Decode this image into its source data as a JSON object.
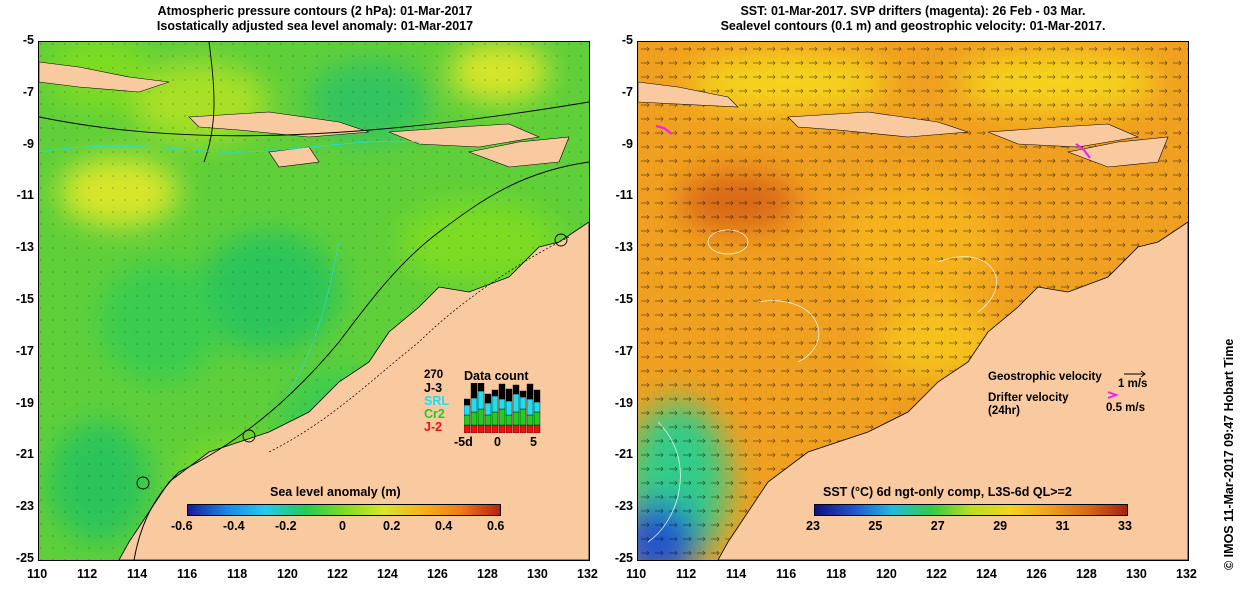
{
  "left_map": {
    "title_line1": "Atmospheric pressure contours (2 hPa): 01-Mar-2017",
    "title_line2": "Isostatically adjusted sea level anomaly: 01-Mar-2017",
    "colorbar_title": "Sea level anomaly (m)",
    "colorbar_ticks": [
      "-0.6",
      "-0.4",
      "-0.2",
      "0",
      "0.2",
      "0.4",
      "0.6"
    ],
    "data_count": {
      "title": "Data count",
      "max_label": "270",
      "missions": [
        {
          "name": "J-3",
          "color": "#000000"
        },
        {
          "name": "SRL",
          "color": "#22ddee"
        },
        {
          "name": "Cr2",
          "color": "#22cc22"
        },
        {
          "name": "J-2",
          "color": "#ee1111"
        }
      ],
      "axis_labels": [
        "-5d",
        "0",
        "5"
      ]
    }
  },
  "right_map": {
    "title_line1": "SST: 01-Mar-2017. SVP drifters (magenta): 26 Feb - 03 Mar.",
    "title_line2": "Sealevel contours (0.1 m) and geostrophic velocity: 01-Mar-2017.",
    "colorbar_title": "SST (°C) 6d ngt-only comp, L3S-6d QL>=2",
    "colorbar_ticks": [
      "23",
      "25",
      "27",
      "29",
      "31",
      "33"
    ],
    "legend": {
      "geostrophic_label": "Geostrophic velocity",
      "geostrophic_scale": "1 m/s",
      "drifter_label": "Drifter velocity",
      "drifter_sub": "(24hr)",
      "drifter_scale": "0.5 m/s"
    }
  },
  "axes": {
    "x_ticks": [
      "110",
      "112",
      "114",
      "116",
      "118",
      "120",
      "122",
      "124",
      "126",
      "128",
      "130",
      "132"
    ],
    "y_ticks": [
      "-5",
      "-7",
      "-9",
      "-11",
      "-13",
      "-15",
      "-17",
      "-19",
      "-21",
      "-23",
      "-25"
    ],
    "lon_range": [
      110,
      132
    ],
    "lat_range": [
      -25,
      -5
    ]
  },
  "credit": "© IMOS 11-Mar-2017 09:47 Hobart Time",
  "colors": {
    "land": "#f9c9a0",
    "sla_ramp": [
      "#1a1a9c",
      "#1a88e6",
      "#22ccee",
      "#22cc55",
      "#7ddc22",
      "#d8e62a",
      "#f5b21e",
      "#f07a18",
      "#b82010"
    ],
    "sst_ramp": [
      "#101080",
      "#2255cc",
      "#22bbdd",
      "#33cc44",
      "#bbdd22",
      "#f5d41e",
      "#f0a020",
      "#d86818",
      "#a82010"
    ],
    "drifter": "#ee22ee"
  }
}
